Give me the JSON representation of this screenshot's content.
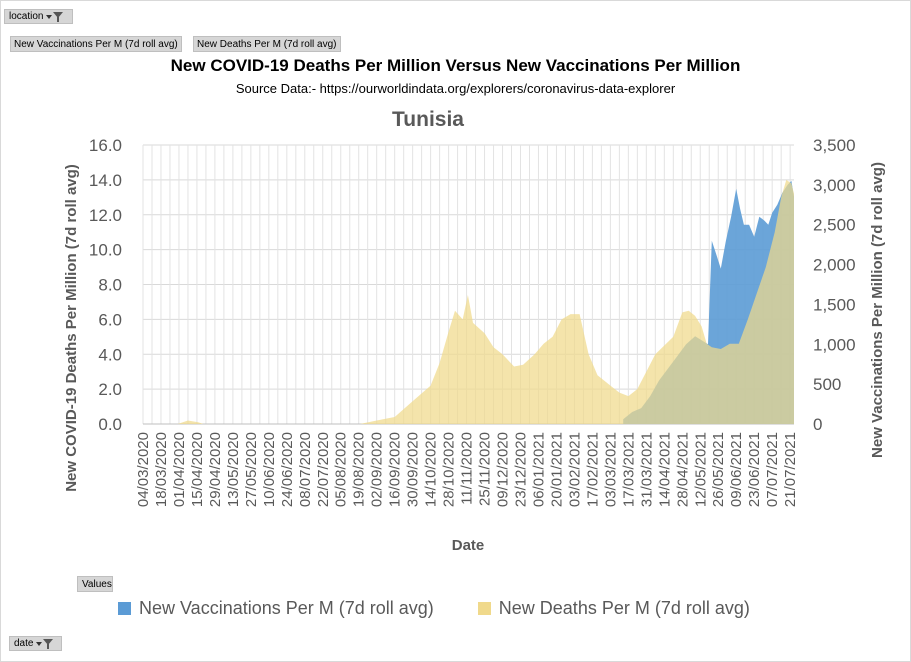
{
  "pivot": {
    "location_button": "location",
    "date_button": "date",
    "values_button": "Values",
    "value_tags": [
      "New Vaccinations Per M (7d roll avg)",
      "New Deaths Per M (7d roll avg)"
    ]
  },
  "header": {
    "title": "New COVID-19 Deaths Per Million  Versus  New Vaccinations  Per Million",
    "source": "Source Data:- https://ourworldindata.org/explorers/coronavirus-data-explorer"
  },
  "chart_data": {
    "type": "area",
    "title": "Tunisia",
    "xlabel": "Date",
    "ylabel_left": "New COVID-19 Deaths Per Million (7d roll avg)",
    "ylabel_right": "New Vaccinations Per Million (7d roll avg)",
    "ylim_left": [
      0,
      16
    ],
    "ylim_right": [
      0,
      3500
    ],
    "yticks_left": [
      "0.0",
      "2.0",
      "4.0",
      "6.0",
      "8.0",
      "10.0",
      "12.0",
      "14.0",
      "16.0"
    ],
    "yticks_right": [
      "0",
      "500",
      "1,000",
      "1,500",
      "2,000",
      "2,500",
      "3,000",
      "3,500"
    ],
    "x_tick_labels": [
      "04/03/2020",
      "18/03/2020",
      "01/04/2020",
      "15/04/2020",
      "29/04/2020",
      "13/05/2020",
      "27/05/2020",
      "10/06/2020",
      "24/06/2020",
      "08/07/2020",
      "22/07/2020",
      "05/08/2020",
      "19/08/2020",
      "02/09/2020",
      "16/09/2020",
      "30/09/2020",
      "14/10/2020",
      "28/10/2020",
      "11/11/2020",
      "25/11/2020",
      "09/12/2020",
      "23/12/2020",
      "06/01/2021",
      "20/01/2021",
      "03/02/2021",
      "17/02/2021",
      "03/03/2021",
      "17/03/2021",
      "31/03/2021",
      "14/04/2021",
      "28/04/2021",
      "12/05/2021",
      "26/05/2021",
      "09/06/2021",
      "23/06/2021",
      "07/07/2021",
      "21/07/2021"
    ],
    "grid": true,
    "legend_position": "bottom",
    "series": [
      {
        "name": "New Vaccinations Per M (7d roll avg)",
        "axis": "right",
        "color": "#5b9bd5",
        "x": [
          "2021-03-13",
          "2021-03-20",
          "2021-03-27",
          "2021-04-03",
          "2021-04-10",
          "2021-04-17",
          "2021-04-24",
          "2021-05-01",
          "2021-05-08",
          "2021-05-13",
          "2021-05-18",
          "2021-05-21",
          "2021-05-24",
          "2021-05-28",
          "2021-06-01",
          "2021-06-05",
          "2021-06-09",
          "2021-06-12",
          "2021-06-15",
          "2021-06-19",
          "2021-06-23",
          "2021-06-27",
          "2021-07-01",
          "2021-07-04",
          "2021-07-07",
          "2021-07-11",
          "2021-07-15",
          "2021-07-19",
          "2021-07-22",
          "2021-07-24"
        ],
        "values": [
          60,
          150,
          200,
          350,
          550,
          700,
          850,
          1000,
          1100,
          1050,
          1000,
          2300,
          2150,
          1950,
          2300,
          2600,
          2950,
          2700,
          2500,
          2500,
          2350,
          2600,
          2550,
          2500,
          2650,
          2750,
          2900,
          3000,
          3050,
          2850
        ]
      },
      {
        "name": "New Deaths Per M (7d roll avg)",
        "axis": "left",
        "color": "#f0d98b",
        "x": [
          "2020-03-04",
          "2020-03-31",
          "2020-04-08",
          "2020-04-16",
          "2020-04-20",
          "2020-08-20",
          "2020-09-02",
          "2020-09-16",
          "2020-09-30",
          "2020-10-14",
          "2020-10-21",
          "2020-10-28",
          "2020-11-02",
          "2020-11-08",
          "2020-11-12",
          "2020-11-16",
          "2020-11-25",
          "2020-12-02",
          "2020-12-09",
          "2020-12-18",
          "2020-12-25",
          "2021-01-03",
          "2021-01-10",
          "2021-01-17",
          "2021-01-24",
          "2021-01-31",
          "2021-02-07",
          "2021-02-14",
          "2021-02-21",
          "2021-03-03",
          "2021-03-10",
          "2021-03-17",
          "2021-03-24",
          "2021-03-31",
          "2021-04-07",
          "2021-04-14",
          "2021-04-21",
          "2021-04-28",
          "2021-05-03",
          "2021-05-08",
          "2021-05-13",
          "2021-05-17",
          "2021-05-21",
          "2021-05-28",
          "2021-06-04",
          "2021-06-11",
          "2021-06-18",
          "2021-06-25",
          "2021-07-02",
          "2021-07-09",
          "2021-07-14",
          "2021-07-18",
          "2021-07-22",
          "2021-07-24"
        ],
        "values": [
          0.0,
          0.0,
          0.2,
          0.1,
          0.0,
          0.0,
          0.2,
          0.4,
          1.3,
          2.2,
          3.5,
          5.3,
          6.5,
          6.0,
          7.4,
          5.8,
          5.2,
          4.4,
          4.0,
          3.3,
          3.4,
          4.0,
          4.6,
          5.0,
          6.0,
          6.3,
          6.3,
          4.0,
          2.8,
          2.2,
          1.8,
          1.6,
          2.0,
          3.0,
          4.0,
          4.5,
          5.0,
          6.4,
          6.5,
          6.2,
          5.6,
          4.6,
          4.4,
          4.3,
          4.6,
          4.6,
          6.0,
          7.5,
          9.0,
          11.0,
          13.0,
          14.0,
          13.8,
          13.2
        ]
      }
    ]
  }
}
